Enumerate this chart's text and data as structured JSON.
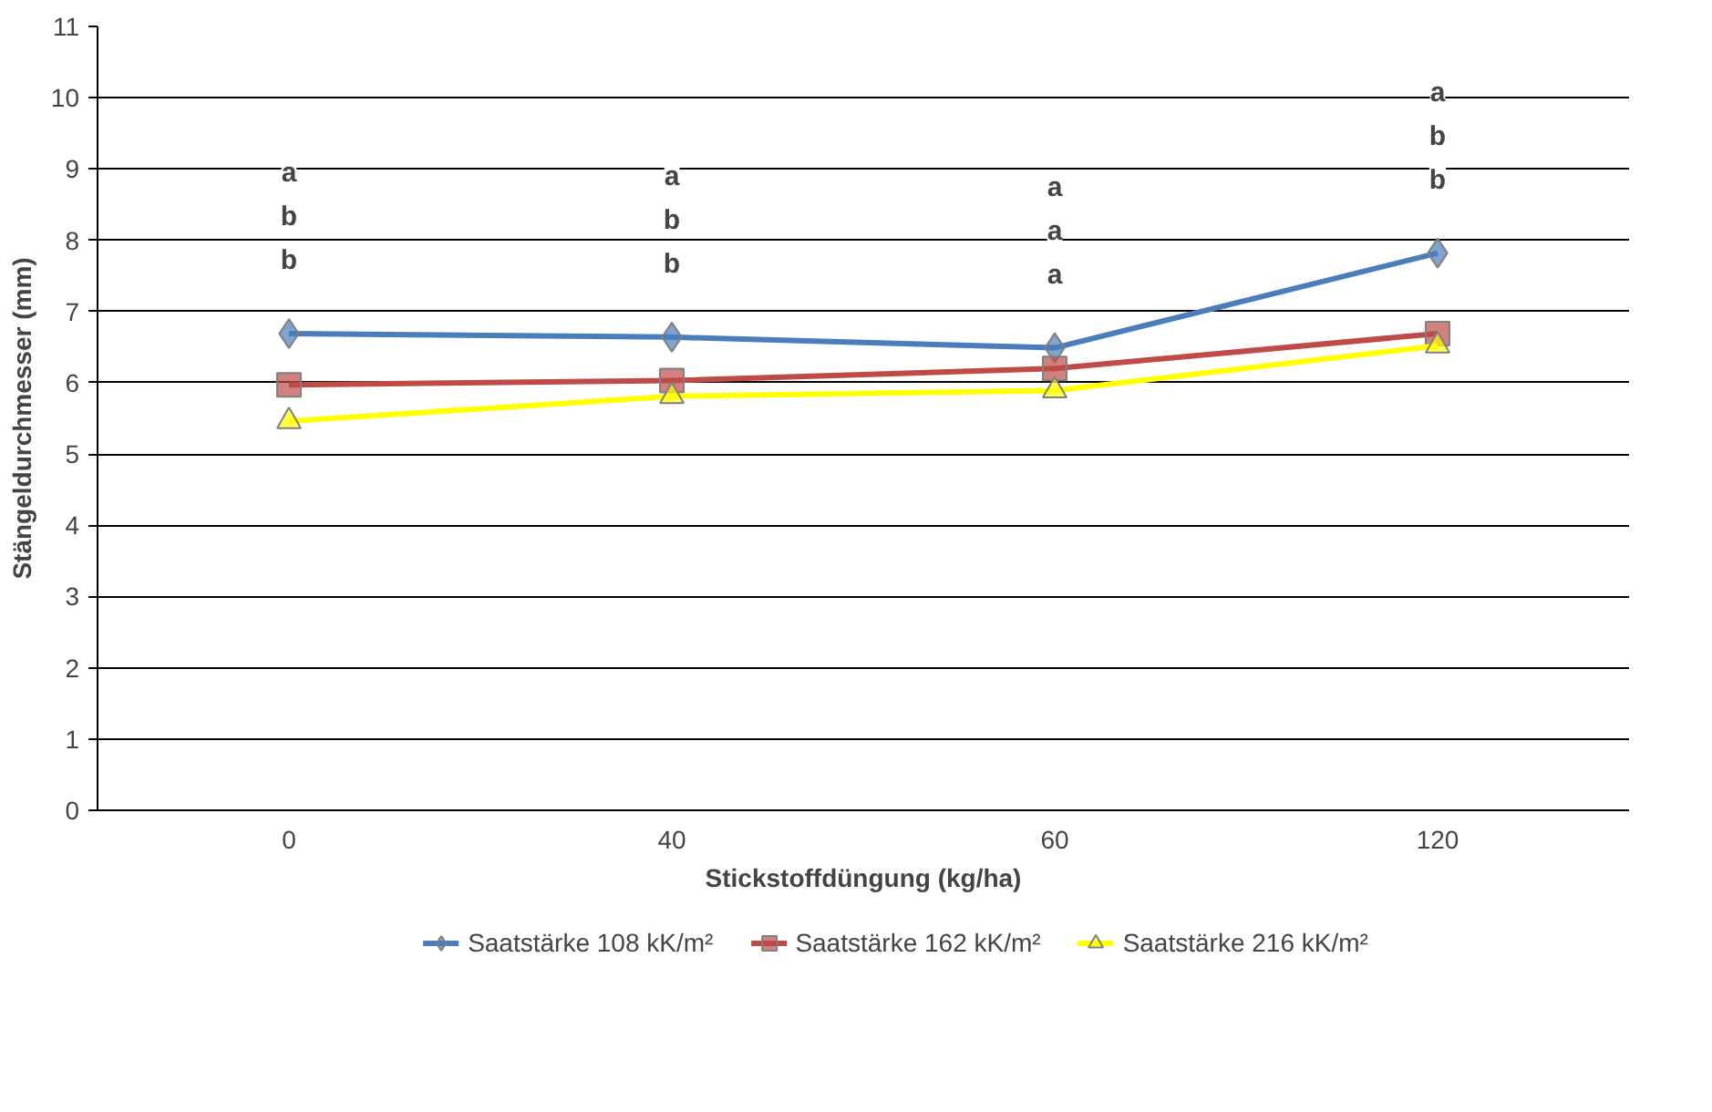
{
  "chart_data": {
    "type": "line",
    "xlabel": "Stickstoffdüngung (kg/ha)",
    "ylabel": "Stängeldurchmesser (mm)",
    "categories": [
      "0",
      "40",
      "60",
      "120"
    ],
    "ylim": [
      0,
      11
    ],
    "yticks": [
      0,
      1,
      2,
      3,
      4,
      5,
      6,
      7,
      8,
      9,
      10,
      11
    ],
    "grid": "y",
    "legend": "bottom",
    "series": [
      {
        "name": "Saatstärke 108 kK/m²",
        "color": "#4a7ebb",
        "marker": "diamond",
        "values": [
          6.69,
          6.64,
          6.49,
          7.82
        ]
      },
      {
        "name": "Saatstärke 162 kK/m²",
        "color": "#be4b48",
        "marker": "square",
        "values": [
          5.97,
          6.03,
          6.2,
          6.69
        ]
      },
      {
        "name": "Saatstärke 216 kK/m²",
        "color": "#ffff00",
        "marker": "triangle",
        "values": [
          5.46,
          5.81,
          5.89,
          6.52
        ]
      }
    ],
    "annotations": [
      "a",
      "b",
      "b",
      "a",
      "b",
      "b",
      "a",
      "a",
      "a",
      "a",
      "b",
      "b"
    ]
  }
}
